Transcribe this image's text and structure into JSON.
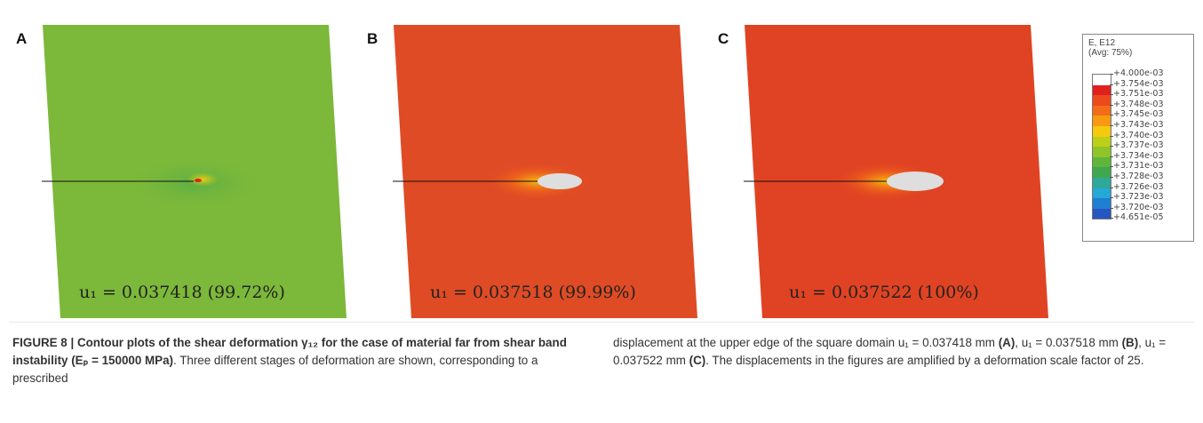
{
  "panels": [
    {
      "letter": "A",
      "label": "u₁ = 0.037418 (99.72%)",
      "fill": "#7cb83a",
      "hole": "none"
    },
    {
      "letter": "B",
      "label": "u₁ = 0.037518 (99.99%)",
      "fill": "#df4b25",
      "hole": "medium"
    },
    {
      "letter": "C",
      "label": "u₁ = 0.037522 (100%)",
      "fill": "#e04323",
      "hole": "large"
    }
  ],
  "legend": {
    "title1": "E, E12",
    "title2": "(Avg: 75%)",
    "values": [
      "+4.000e-03",
      "+3.754e-03",
      "+3.751e-03",
      "+3.748e-03",
      "+3.745e-03",
      "+3.743e-03",
      "+3.740e-03",
      "+3.737e-03",
      "+3.734e-03",
      "+3.731e-03",
      "+3.728e-03",
      "+3.726e-03",
      "+3.723e-03",
      "+3.720e-03",
      "+4.651e-05"
    ],
    "colors": [
      "#ffffff",
      "#e0201e",
      "#ec4a1c",
      "#f36c17",
      "#f79a12",
      "#f5c90e",
      "#bcd01a",
      "#8fc42a",
      "#5fb63a",
      "#3fa84e",
      "#2fa89a",
      "#24a8d6",
      "#1f7fd3",
      "#2756c2",
      "#2a44a8"
    ]
  },
  "caption": {
    "left_bold": "FIGURE 8 | Contour plots of the shear deformation γ₁₂ for the case of material far from shear band instability (Eₚ = 150000 MPa)",
    "left_rest": ". Three different stages of deformation are shown, corresponding to a prescribed",
    "right_1": "displacement at the upper edge of the square domain u₁ = 0.037418 mm",
    "right_a": "(A)",
    "right_2": ", u₁ = 0.037518 mm ",
    "right_b": "(B)",
    "right_3": ", u₁ = 0.037522 mm ",
    "right_c": "(C)",
    "right_4": ". The displacements in the figures are amplified by a deformation scale factor of 25."
  }
}
